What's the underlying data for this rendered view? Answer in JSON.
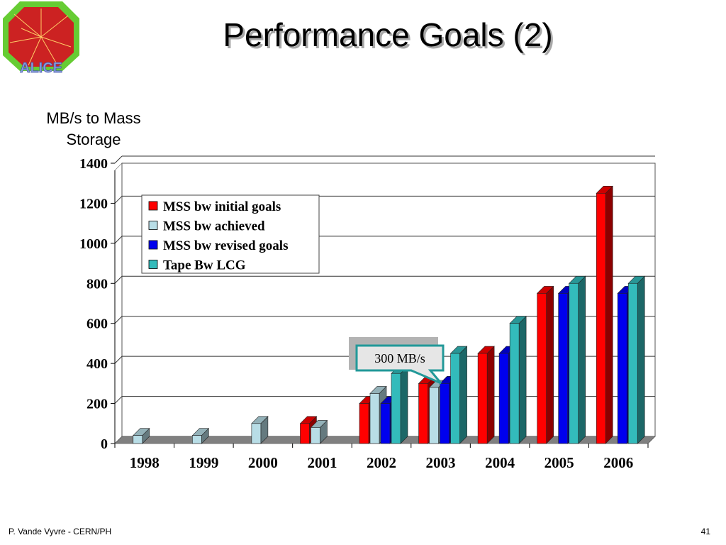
{
  "slide": {
    "title": "Performance Goals (2)",
    "logo_text": "ALICE",
    "footer_author": "P. Vande Vyvre - CERN/PH",
    "page_number": "41"
  },
  "chart_data": {
    "type": "bar",
    "title": "",
    "ylabel": "MB/s to Mass Storage",
    "xlabel": "",
    "ylim": [
      0,
      1400
    ],
    "yticks": [
      "0",
      "200",
      "400",
      "600",
      "800",
      "1000",
      "1200",
      "1400"
    ],
    "ytick_values": [
      0,
      200,
      400,
      600,
      800,
      1000,
      1200,
      1400
    ],
    "grid": true,
    "legend_position": "top-left",
    "categories": [
      "1998",
      "1999",
      "2000",
      "2001",
      "2002",
      "2003",
      "2004",
      "2005",
      "2006"
    ],
    "series": [
      {
        "name": "MSS bw initial goals",
        "color": "#ff0000",
        "values": [
          null,
          null,
          null,
          100,
          200,
          300,
          450,
          750,
          1250
        ]
      },
      {
        "name": "MSS bw achieved",
        "color": "#b8dde6",
        "values": [
          40,
          40,
          100,
          80,
          250,
          280,
          null,
          null,
          null
        ]
      },
      {
        "name": "MSS bw revised goals",
        "color": "#0000ee",
        "values": [
          null,
          null,
          null,
          null,
          200,
          300,
          450,
          750,
          750
        ]
      },
      {
        "name": "Tape Bw LCG",
        "color": "#33bbbb",
        "values": [
          null,
          null,
          null,
          null,
          350,
          450,
          600,
          800,
          800
        ]
      }
    ],
    "annotations": [
      {
        "text": "300  MB/s",
        "category": "2003"
      }
    ]
  }
}
